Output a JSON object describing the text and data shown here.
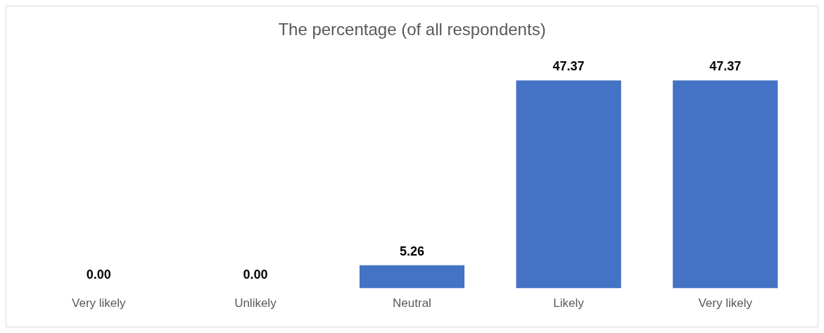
{
  "chart_data": {
    "type": "bar",
    "title": "The percentage (of all respondents)",
    "categories": [
      "Very likely",
      "Unlikely",
      "Neutral",
      "Likely",
      "Very likely"
    ],
    "values": [
      0,
      0,
      5.26,
      47.37,
      47.37
    ],
    "value_labels": [
      "0.00",
      "0.00",
      "5.26",
      "47.37",
      "47.37"
    ],
    "color": "#4472c4",
    "grid": false,
    "legend": false
  }
}
